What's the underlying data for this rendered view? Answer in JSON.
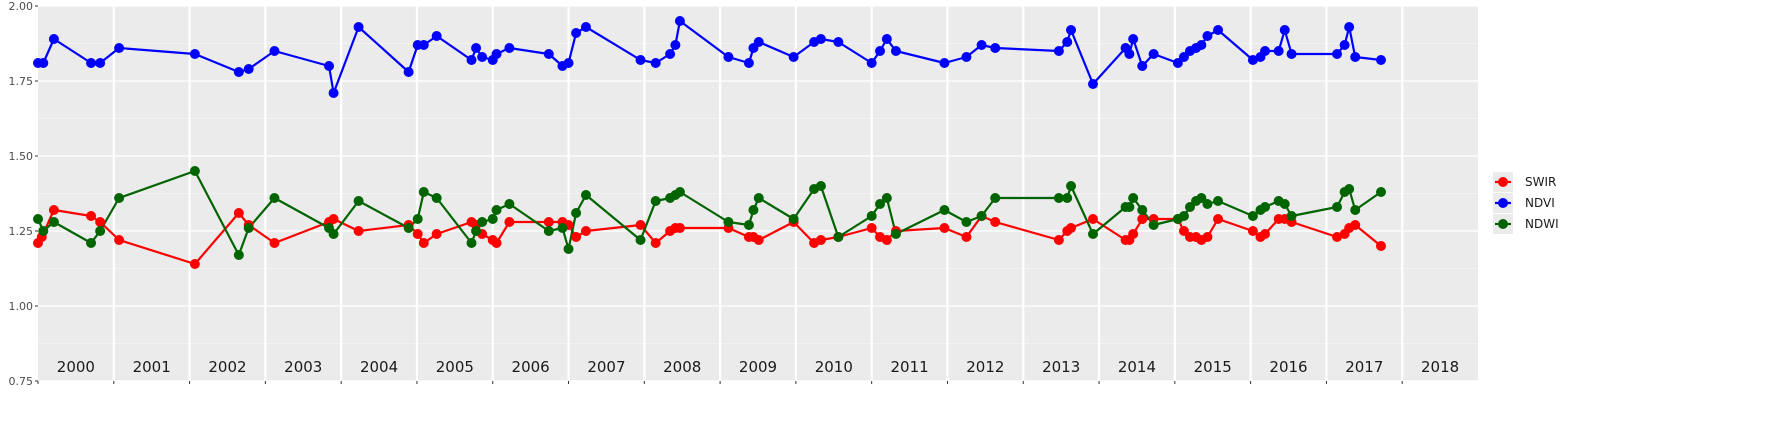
{
  "chart_data": {
    "type": "line",
    "title": "",
    "xlabel": "",
    "ylabel": "",
    "xlim": [
      2000,
      2019
    ],
    "ylim": [
      0.75,
      2.0
    ],
    "y_ticks": [
      "0.75",
      "1.00",
      "1.25",
      "1.50",
      "1.75",
      "2.00"
    ],
    "y_tick_values": [
      0.75,
      1.0,
      1.25,
      1.5,
      1.75,
      2.0
    ],
    "x_year_labels": [
      "2000",
      "2001",
      "2002",
      "2003",
      "2004",
      "2005",
      "2006",
      "2007",
      "2008",
      "2009",
      "2010",
      "2011",
      "2012",
      "2013",
      "2014",
      "2015",
      "2016",
      "2017",
      "2018"
    ],
    "grid": true,
    "panel_background": "#EBEBEB",
    "legend_position": "right",
    "series": [
      {
        "name": "SWIR",
        "color": "#FF0000",
        "x": [
          2000.0,
          2000.05,
          2000.21,
          2000.7,
          2000.82,
          2001.07,
          2002.07,
          2002.65,
          2002.78,
          2003.12,
          2003.84,
          2003.9,
          2004.23,
          2004.89,
          2005.01,
          2005.09,
          2005.26,
          2005.72,
          2005.78,
          2005.86,
          2006.0,
          2006.05,
          2006.22,
          2006.74,
          2006.92,
          2007.0,
          2007.1,
          2007.23,
          2007.95,
          2008.15,
          2008.34,
          2008.41,
          2008.47,
          2009.11,
          2009.38,
          2009.44,
          2009.51,
          2009.97,
          2010.24,
          2010.33,
          2010.56,
          2011.0,
          2011.11,
          2011.2,
          2011.32,
          2011.96,
          2012.25,
          2012.45,
          2012.63,
          2013.47,
          2013.58,
          2013.63,
          2013.92,
          2014.35,
          2014.4,
          2014.45,
          2014.57,
          2014.72,
          2015.04,
          2015.12,
          2015.2,
          2015.28,
          2015.35,
          2015.43,
          2015.57,
          2016.03,
          2016.13,
          2016.19,
          2016.37,
          2016.45,
          2016.54,
          2017.14,
          2017.24,
          2017.3,
          2017.38,
          2017.72
        ],
        "y": [
          1.21,
          1.23,
          1.32,
          1.3,
          1.28,
          1.22,
          1.14,
          1.31,
          1.27,
          1.21,
          1.28,
          1.29,
          1.25,
          1.27,
          1.24,
          1.21,
          1.24,
          1.28,
          1.27,
          1.24,
          1.22,
          1.21,
          1.28,
          1.28,
          1.28,
          1.27,
          1.23,
          1.25,
          1.27,
          1.21,
          1.25,
          1.26,
          1.26,
          1.26,
          1.23,
          1.23,
          1.22,
          1.28,
          1.21,
          1.22,
          1.23,
          1.26,
          1.23,
          1.22,
          1.25,
          1.26,
          1.23,
          1.3,
          1.28,
          1.22,
          1.25,
          1.26,
          1.29,
          1.22,
          1.22,
          1.24,
          1.29,
          1.29,
          1.29,
          1.25,
          1.23,
          1.23,
          1.22,
          1.23,
          1.29,
          1.25,
          1.23,
          1.24,
          1.29,
          1.29,
          1.28,
          1.23,
          1.24,
          1.26,
          1.27,
          1.2
        ]
      },
      {
        "name": "NDVI",
        "color": "#0000FF",
        "x": [
          2000.0,
          2000.07,
          2000.21,
          2000.7,
          2000.82,
          2001.07,
          2002.07,
          2002.65,
          2002.78,
          2003.12,
          2003.84,
          2003.9,
          2004.23,
          2004.89,
          2005.01,
          2005.09,
          2005.26,
          2005.72,
          2005.78,
          2005.86,
          2006.0,
          2006.05,
          2006.22,
          2006.74,
          2006.92,
          2007.0,
          2007.1,
          2007.23,
          2007.95,
          2008.15,
          2008.34,
          2008.41,
          2008.47,
          2009.11,
          2009.38,
          2009.44,
          2009.51,
          2009.97,
          2010.24,
          2010.33,
          2010.56,
          2011.0,
          2011.11,
          2011.2,
          2011.32,
          2011.96,
          2012.25,
          2012.45,
          2012.63,
          2013.47,
          2013.58,
          2013.63,
          2013.92,
          2014.35,
          2014.4,
          2014.45,
          2014.57,
          2014.72,
          2015.04,
          2015.12,
          2015.2,
          2015.28,
          2015.35,
          2015.43,
          2015.57,
          2016.03,
          2016.13,
          2016.19,
          2016.37,
          2016.45,
          2016.54,
          2017.14,
          2017.24,
          2017.3,
          2017.38,
          2017.72
        ],
        "y": [
          1.81,
          1.81,
          1.89,
          1.81,
          1.81,
          1.86,
          1.84,
          1.78,
          1.79,
          1.85,
          1.8,
          1.71,
          1.93,
          1.78,
          1.87,
          1.87,
          1.9,
          1.82,
          1.86,
          1.83,
          1.82,
          1.84,
          1.86,
          1.84,
          1.8,
          1.81,
          1.91,
          1.93,
          1.82,
          1.81,
          1.84,
          1.87,
          1.95,
          1.83,
          1.81,
          1.86,
          1.88,
          1.83,
          1.88,
          1.89,
          1.88,
          1.81,
          1.85,
          1.89,
          1.85,
          1.81,
          1.83,
          1.87,
          1.86,
          1.85,
          1.88,
          1.92,
          1.74,
          1.86,
          1.84,
          1.89,
          1.8,
          1.84,
          1.81,
          1.83,
          1.85,
          1.86,
          1.87,
          1.9,
          1.92,
          1.82,
          1.83,
          1.85,
          1.85,
          1.92,
          1.84,
          1.84,
          1.87,
          1.93,
          1.83,
          1.82
        ]
      },
      {
        "name": "NDWI",
        "color": "#006400",
        "x": [
          2000.0,
          2000.07,
          2000.21,
          2000.7,
          2000.82,
          2001.07,
          2002.07,
          2002.65,
          2002.78,
          2003.12,
          2003.84,
          2003.9,
          2004.23,
          2004.89,
          2005.01,
          2005.09,
          2005.26,
          2005.72,
          2005.78,
          2005.86,
          2006.0,
          2006.05,
          2006.22,
          2006.74,
          2006.92,
          2007.0,
          2007.1,
          2007.23,
          2007.95,
          2008.15,
          2008.34,
          2008.41,
          2008.47,
          2009.11,
          2009.38,
          2009.44,
          2009.51,
          2009.97,
          2010.24,
          2010.33,
          2010.56,
          2011.0,
          2011.11,
          2011.2,
          2011.32,
          2011.96,
          2012.25,
          2012.45,
          2012.63,
          2013.47,
          2013.58,
          2013.63,
          2013.92,
          2014.35,
          2014.4,
          2014.45,
          2014.57,
          2014.72,
          2015.04,
          2015.12,
          2015.2,
          2015.28,
          2015.35,
          2015.43,
          2015.57,
          2016.03,
          2016.13,
          2016.19,
          2016.37,
          2016.45,
          2016.54,
          2017.14,
          2017.24,
          2017.3,
          2017.38,
          2017.72
        ],
        "y": [
          1.29,
          1.25,
          1.28,
          1.21,
          1.25,
          1.36,
          1.45,
          1.17,
          1.26,
          1.36,
          1.26,
          1.24,
          1.35,
          1.26,
          1.29,
          1.38,
          1.36,
          1.21,
          1.25,
          1.28,
          1.29,
          1.32,
          1.34,
          1.25,
          1.26,
          1.19,
          1.31,
          1.37,
          1.22,
          1.35,
          1.36,
          1.37,
          1.38,
          1.28,
          1.27,
          1.32,
          1.36,
          1.29,
          1.39,
          1.4,
          1.23,
          1.3,
          1.34,
          1.36,
          1.24,
          1.32,
          1.28,
          1.3,
          1.36,
          1.36,
          1.36,
          1.4,
          1.24,
          1.33,
          1.33,
          1.36,
          1.32,
          1.27,
          1.29,
          1.3,
          1.33,
          1.35,
          1.36,
          1.34,
          1.35,
          1.3,
          1.32,
          1.33,
          1.35,
          1.34,
          1.3,
          1.33,
          1.38,
          1.39,
          1.32,
          1.38
        ]
      }
    ]
  }
}
